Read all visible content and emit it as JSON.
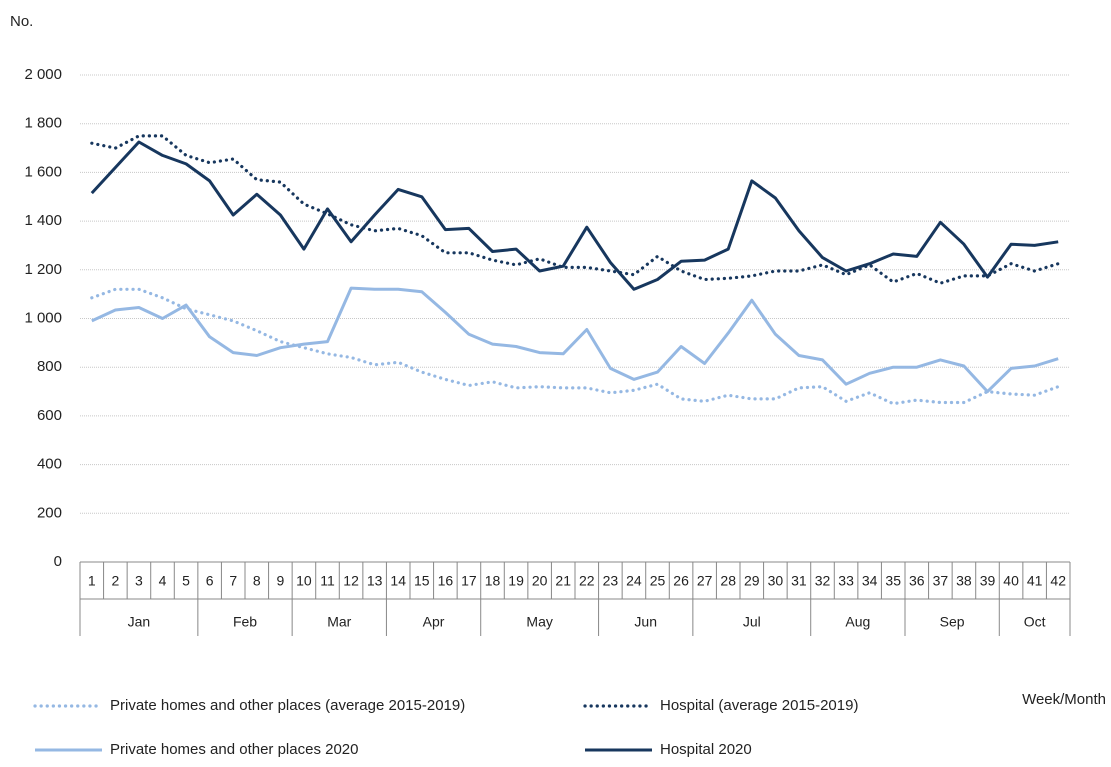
{
  "chart_data": {
    "type": "line",
    "y_label": "No.",
    "x_label": "Week/Month",
    "categories": [
      "1",
      "2",
      "3",
      "4",
      "5",
      "6",
      "7",
      "8",
      "9",
      "10",
      "11",
      "12",
      "13",
      "14",
      "15",
      "16",
      "17",
      "18",
      "19",
      "20",
      "21",
      "22",
      "23",
      "24",
      "25",
      "26",
      "27",
      "28",
      "29",
      "30",
      "31",
      "32",
      "33",
      "34",
      "35",
      "36",
      "37",
      "38",
      "39",
      "40",
      "41",
      "42"
    ],
    "groups": [
      {
        "label": "Jan",
        "span": 5
      },
      {
        "label": "Feb",
        "span": 4
      },
      {
        "label": "Mar",
        "span": 4
      },
      {
        "label": "Apr",
        "span": 4
      },
      {
        "label": "May",
        "span": 5
      },
      {
        "label": "Jun",
        "span": 4
      },
      {
        "label": "Jul",
        "span": 5
      },
      {
        "label": "Aug",
        "span": 4
      },
      {
        "label": "Sep",
        "span": 4
      },
      {
        "label": "Oct",
        "span": 3
      }
    ],
    "ylim": [
      0,
      2000
    ],
    "yticks": [
      0,
      200,
      400,
      600,
      800,
      {
        "value": 1000,
        "label": "1 000"
      },
      {
        "value": 1200,
        "label": "1 200"
      },
      {
        "value": 1400,
        "label": "1 400"
      },
      {
        "value": 1600,
        "label": "1 600"
      },
      {
        "value": 1800,
        "label": "1 800"
      },
      {
        "value": 2000,
        "label": "2 000"
      }
    ],
    "grid": true,
    "series": [
      {
        "name": "Private homes and other places (average 2015-2019)",
        "color": "#95b8e3",
        "style": "dotted",
        "values": [
          1085,
          1120,
          1120,
          1085,
          1040,
          1015,
          990,
          950,
          905,
          880,
          855,
          840,
          810,
          820,
          780,
          750,
          725,
          740,
          715,
          720,
          715,
          715,
          695,
          705,
          730,
          670,
          660,
          685,
          670,
          670,
          715,
          720,
          660,
          695,
          650,
          665,
          655,
          655,
          700,
          690,
          685,
          720
        ]
      },
      {
        "name": "Hospital (average 2015-2019)",
        "color": "#17375e",
        "style": "dotted",
        "values": [
          1720,
          1700,
          1750,
          1750,
          1670,
          1640,
          1655,
          1570,
          1560,
          1470,
          1430,
          1385,
          1360,
          1370,
          1340,
          1270,
          1270,
          1240,
          1220,
          1245,
          1210,
          1210,
          1195,
          1180,
          1255,
          1195,
          1160,
          1165,
          1175,
          1195,
          1195,
          1220,
          1180,
          1220,
          1150,
          1185,
          1145,
          1175,
          1175,
          1225,
          1195,
          1225
        ]
      },
      {
        "name": "Private homes and other places 2020",
        "color": "#95b8e3",
        "style": "solid",
        "values": [
          990,
          1035,
          1045,
          1000,
          1055,
          925,
          860,
          848,
          880,
          895,
          905,
          1125,
          1120,
          1120,
          1110,
          1025,
          935,
          895,
          885,
          860,
          855,
          955,
          795,
          750,
          780,
          885,
          815,
          940,
          1075,
          935,
          848,
          830,
          730,
          775,
          800,
          800,
          830,
          805,
          700,
          795,
          805,
          835
        ]
      },
      {
        "name": "Hospital 2020",
        "color": "#17375e",
        "style": "solid",
        "values": [
          1515,
          1620,
          1725,
          1670,
          1635,
          1565,
          1425,
          1510,
          1425,
          1285,
          1450,
          1315,
          1425,
          1530,
          1500,
          1365,
          1370,
          1275,
          1285,
          1195,
          1215,
          1375,
          1230,
          1120,
          1160,
          1235,
          1240,
          1285,
          1565,
          1495,
          1360,
          1250,
          1195,
          1225,
          1265,
          1255,
          1395,
          1305,
          1170,
          1305,
          1300,
          1315
        ]
      }
    ]
  }
}
